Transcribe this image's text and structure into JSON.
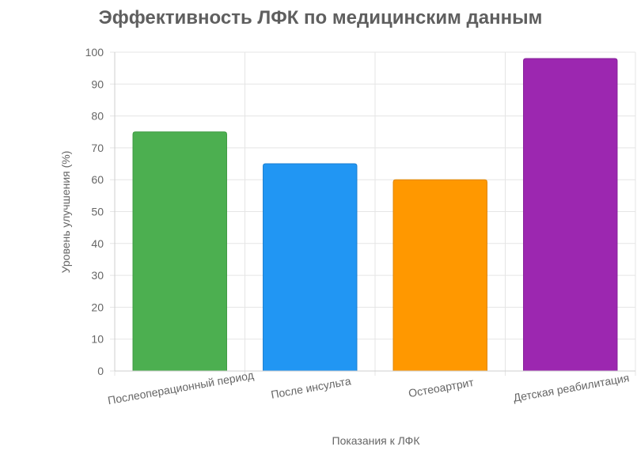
{
  "chart_data": {
    "type": "bar",
    "title": "Эффективность ЛФК по медицинским данным",
    "xlabel": "Показания к ЛФК",
    "ylabel": "Уровень улучшения (%)",
    "categories": [
      "Послеоперационный период",
      "После инсульта",
      "Остеоартрит",
      "Детская реабилитация"
    ],
    "values": [
      75,
      65,
      60,
      98
    ],
    "colors": [
      "#4caf50",
      "#2196f3",
      "#ff9800",
      "#9c27b0"
    ],
    "border_colors": [
      "#3c9a40",
      "#1b7fd0",
      "#e08500",
      "#86209a"
    ],
    "ylim": [
      0,
      100
    ],
    "yticks": [
      0,
      10,
      20,
      30,
      40,
      50,
      60,
      70,
      80,
      90,
      100
    ],
    "grid": true,
    "legend": "none"
  }
}
